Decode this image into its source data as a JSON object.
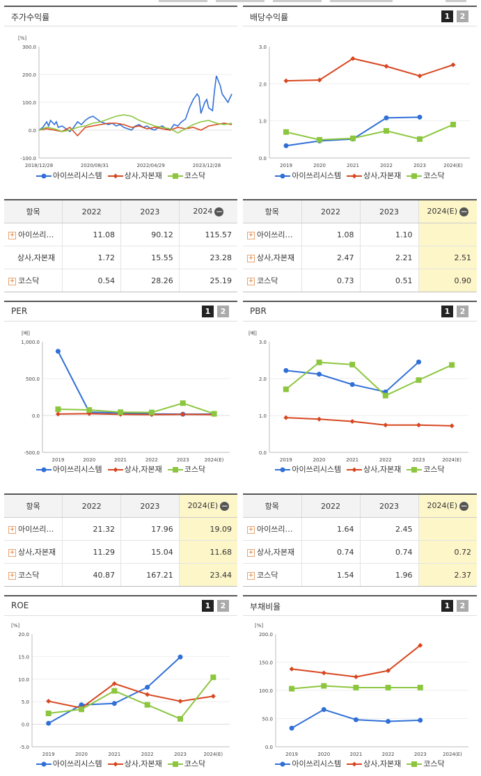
{
  "colors": {
    "company": "#2f6fd6",
    "sector": "#d7461f",
    "kosdaq": "#8cc63e",
    "highlight": "#fdf6c9"
  },
  "legend": {
    "company": "아이쓰리시스템",
    "sector": "상사,자본재",
    "kosdaq": "코스닥"
  },
  "panels": {
    "return": {
      "title": "주가수익률"
    },
    "dividend": {
      "title": "배당수익률",
      "page1": "1",
      "page2": "2"
    },
    "per": {
      "title": "PER",
      "page1": "1",
      "page2": "2"
    },
    "pbr": {
      "title": "PBR",
      "page1": "1",
      "page2": "2"
    },
    "roe": {
      "title": "ROE",
      "page1": "1",
      "page2": "2"
    },
    "debt": {
      "title": "부채비율",
      "page1": "1",
      "page2": "2"
    }
  },
  "tables": {
    "return": {
      "headers": [
        "항목",
        "2022",
        "2023",
        "2024"
      ],
      "rows": [
        {
          "label": "아이쓰리…",
          "v": [
            "11.08",
            "90.12",
            "115.57"
          ]
        },
        {
          "label": "상사,자본재",
          "v": [
            "1.72",
            "15.55",
            "23.28"
          ]
        },
        {
          "label": "코스닥",
          "v": [
            "0.54",
            "28.26",
            "25.19"
          ]
        }
      ]
    },
    "dividend": {
      "headers": [
        "항목",
        "2022",
        "2023",
        "2024(E)"
      ],
      "rows": [
        {
          "label": "아이쓰리…",
          "v": [
            "1.08",
            "1.10",
            ""
          ]
        },
        {
          "label": "상사,자본재",
          "v": [
            "2.47",
            "2.21",
            "2.51"
          ]
        },
        {
          "label": "코스닥",
          "v": [
            "0.73",
            "0.51",
            "0.90"
          ]
        }
      ]
    },
    "per": {
      "headers": [
        "항목",
        "2022",
        "2023",
        "2024(E)"
      ],
      "rows": [
        {
          "label": "아이쓰리…",
          "v": [
            "21.32",
            "17.96",
            "19.09"
          ]
        },
        {
          "label": "상사,자본재",
          "v": [
            "11.29",
            "15.04",
            "11.68"
          ]
        },
        {
          "label": "코스닥",
          "v": [
            "40.87",
            "167.21",
            "23.44"
          ]
        }
      ]
    },
    "pbr": {
      "headers": [
        "항목",
        "2022",
        "2023",
        "2024(E)"
      ],
      "rows": [
        {
          "label": "아이쓰리…",
          "v": [
            "1.64",
            "2.45",
            ""
          ]
        },
        {
          "label": "상사,자본재",
          "v": [
            "0.74",
            "0.74",
            "0.72"
          ]
        },
        {
          "label": "코스닥",
          "v": [
            "1.54",
            "1.96",
            "2.37"
          ]
        }
      ]
    }
  },
  "chart_data": [
    {
      "id": "return",
      "type": "line",
      "unit": "[%]",
      "ylim": [
        -100,
        300
      ],
      "yticks": [
        "300.0",
        "200.0",
        "100.0",
        "0.0",
        "-100.0"
      ],
      "xlabels": [
        "2018/12/28",
        "2020/08/31",
        "2022/04/29",
        "2023/12/28"
      ],
      "xlabel_pos": [
        0,
        0.289,
        0.58,
        0.87
      ],
      "series": [
        {
          "name": "아이쓰리시스템",
          "key": "company",
          "x": [
            0,
            0.02,
            0.04,
            0.05,
            0.06,
            0.08,
            0.09,
            0.1,
            0.12,
            0.14,
            0.16,
            0.18,
            0.2,
            0.22,
            0.24,
            0.26,
            0.28,
            0.3,
            0.32,
            0.34,
            0.36,
            0.38,
            0.4,
            0.42,
            0.44,
            0.46,
            0.48,
            0.5,
            0.52,
            0.54,
            0.56,
            0.58,
            0.6,
            0.62,
            0.64,
            0.66,
            0.68,
            0.7,
            0.72,
            0.74,
            0.76,
            0.78,
            0.8,
            0.82,
            0.83,
            0.84,
            0.86,
            0.87,
            0.88,
            0.9,
            0.91,
            0.92,
            0.94,
            0.95,
            0.96,
            0.97,
            0.98,
            1.0
          ],
          "y": [
            0,
            10,
            30,
            15,
            35,
            20,
            30,
            10,
            15,
            5,
            -5,
            10,
            30,
            20,
            35,
            45,
            50,
            40,
            30,
            25,
            20,
            25,
            15,
            20,
            10,
            5,
            0,
            15,
            20,
            10,
            15,
            5,
            0,
            10,
            15,
            5,
            0,
            20,
            15,
            30,
            40,
            80,
            110,
            130,
            120,
            60,
            100,
            110,
            80,
            70,
            140,
            195,
            160,
            130,
            120,
            110,
            100,
            130
          ]
        },
        {
          "name": "상사,자본재",
          "key": "sector",
          "x": [
            0,
            0.04,
            0.08,
            0.12,
            0.16,
            0.2,
            0.22,
            0.24,
            0.28,
            0.32,
            0.36,
            0.4,
            0.44,
            0.48,
            0.52,
            0.56,
            0.6,
            0.64,
            0.68,
            0.72,
            0.76,
            0.8,
            0.84,
            0.88,
            0.92,
            0.96,
            1.0
          ],
          "y": [
            0,
            5,
            0,
            -5,
            10,
            -20,
            -5,
            10,
            15,
            20,
            25,
            25,
            20,
            10,
            15,
            5,
            10,
            5,
            0,
            10,
            5,
            10,
            0,
            15,
            20,
            25,
            20
          ]
        },
        {
          "name": "코스닥",
          "key": "kosdaq",
          "x": [
            0,
            0.04,
            0.08,
            0.12,
            0.16,
            0.2,
            0.24,
            0.28,
            0.32,
            0.36,
            0.4,
            0.44,
            0.48,
            0.52,
            0.56,
            0.6,
            0.64,
            0.68,
            0.72,
            0.76,
            0.8,
            0.84,
            0.88,
            0.92,
            0.96,
            1.0
          ],
          "y": [
            0,
            10,
            5,
            -5,
            0,
            10,
            15,
            25,
            30,
            40,
            50,
            55,
            50,
            35,
            25,
            15,
            10,
            5,
            -10,
            5,
            20,
            30,
            35,
            25,
            20,
            25
          ]
        }
      ]
    },
    {
      "id": "dividend",
      "type": "line",
      "unit": "",
      "ylim": [
        0,
        3
      ],
      "yticks": [
        "3.0",
        "2.0",
        "1.0",
        "0.0"
      ],
      "categories": [
        "2019",
        "2020",
        "2021",
        "2022",
        "2023",
        "2024(E)"
      ],
      "series": [
        {
          "name": "아이쓰리시스템",
          "key": "company",
          "values": [
            0.33,
            0.46,
            0.51,
            1.08,
            1.1,
            null
          ]
        },
        {
          "name": "상사,자본재",
          "key": "sector",
          "values": [
            2.08,
            2.1,
            2.68,
            2.47,
            2.21,
            2.51
          ]
        },
        {
          "name": "코스닥",
          "key": "kosdaq",
          "values": [
            0.7,
            0.49,
            0.53,
            0.73,
            0.51,
            0.9
          ]
        }
      ]
    },
    {
      "id": "per",
      "type": "line",
      "unit": "[배]",
      "ylim": [
        -500,
        1000
      ],
      "yticks": [
        "1,000.0",
        "500.0",
        "0.0",
        "-500.0"
      ],
      "categories": [
        "2019",
        "2020",
        "2021",
        "2022",
        "2023",
        "2024(E)"
      ],
      "series": [
        {
          "name": "아이쓰리시스템",
          "key": "company",
          "values": [
            870,
            45,
            35,
            21.32,
            17.96,
            19.09
          ]
        },
        {
          "name": "상사,자본재",
          "key": "sector",
          "values": [
            20,
            25,
            15,
            11.29,
            15.04,
            11.68
          ]
        },
        {
          "name": "코스닥",
          "key": "kosdaq",
          "values": [
            85,
            75,
            45,
            40.87,
            167.21,
            23.44
          ]
        }
      ]
    },
    {
      "id": "pbr",
      "type": "line",
      "unit": "[배]",
      "ylim": [
        0,
        3
      ],
      "yticks": [
        "3.0",
        "2.0",
        "1.0",
        "0.0"
      ],
      "categories": [
        "2019",
        "2020",
        "2021",
        "2022",
        "2023",
        "2024(E)"
      ],
      "series": [
        {
          "name": "아이쓰리시스템",
          "key": "company",
          "values": [
            2.22,
            2.12,
            1.84,
            1.64,
            2.45,
            null
          ]
        },
        {
          "name": "상사,자본재",
          "key": "sector",
          "values": [
            0.94,
            0.9,
            0.84,
            0.74,
            0.74,
            0.72
          ]
        },
        {
          "name": "코스닥",
          "key": "kosdaq",
          "values": [
            1.71,
            2.44,
            2.38,
            1.54,
            1.96,
            2.37
          ]
        }
      ]
    },
    {
      "id": "roe",
      "type": "line",
      "unit": "[%]",
      "ylim": [
        -5,
        20
      ],
      "yticks": [
        "20.0",
        "15.0",
        "10.0",
        "5.0",
        "0.0",
        "-5.0"
      ],
      "categories": [
        "2019",
        "2020",
        "2021",
        "2022",
        "2023",
        "2024(E)"
      ],
      "series": [
        {
          "name": "아이쓰리시스템",
          "key": "company",
          "values": [
            0.2,
            4.3,
            4.6,
            8.2,
            14.9,
            null
          ]
        },
        {
          "name": "상사,자본재",
          "key": "sector",
          "values": [
            5.1,
            3.6,
            9.0,
            6.6,
            5.1,
            6.2
          ]
        },
        {
          "name": "코스닥",
          "key": "kosdaq",
          "values": [
            2.4,
            3.3,
            7.4,
            4.3,
            1.2,
            10.4
          ]
        }
      ]
    },
    {
      "id": "debt",
      "type": "line",
      "unit": "[%]",
      "ylim": [
        0,
        200
      ],
      "yticks": [
        "200.0",
        "150.0",
        "100.0",
        "50.0",
        "0.0"
      ],
      "categories": [
        "2019",
        "2020",
        "2021",
        "2022",
        "2023",
        "2024(E)"
      ],
      "series": [
        {
          "name": "아이쓰리시스템",
          "key": "company",
          "values": [
            33,
            66,
            48,
            45,
            47,
            null
          ]
        },
        {
          "name": "상사,자본재",
          "key": "sector",
          "values": [
            138,
            131,
            124,
            135,
            180,
            null
          ]
        },
        {
          "name": "코스닥",
          "key": "kosdaq",
          "values": [
            103,
            108,
            105,
            105,
            105,
            null
          ]
        }
      ]
    }
  ]
}
